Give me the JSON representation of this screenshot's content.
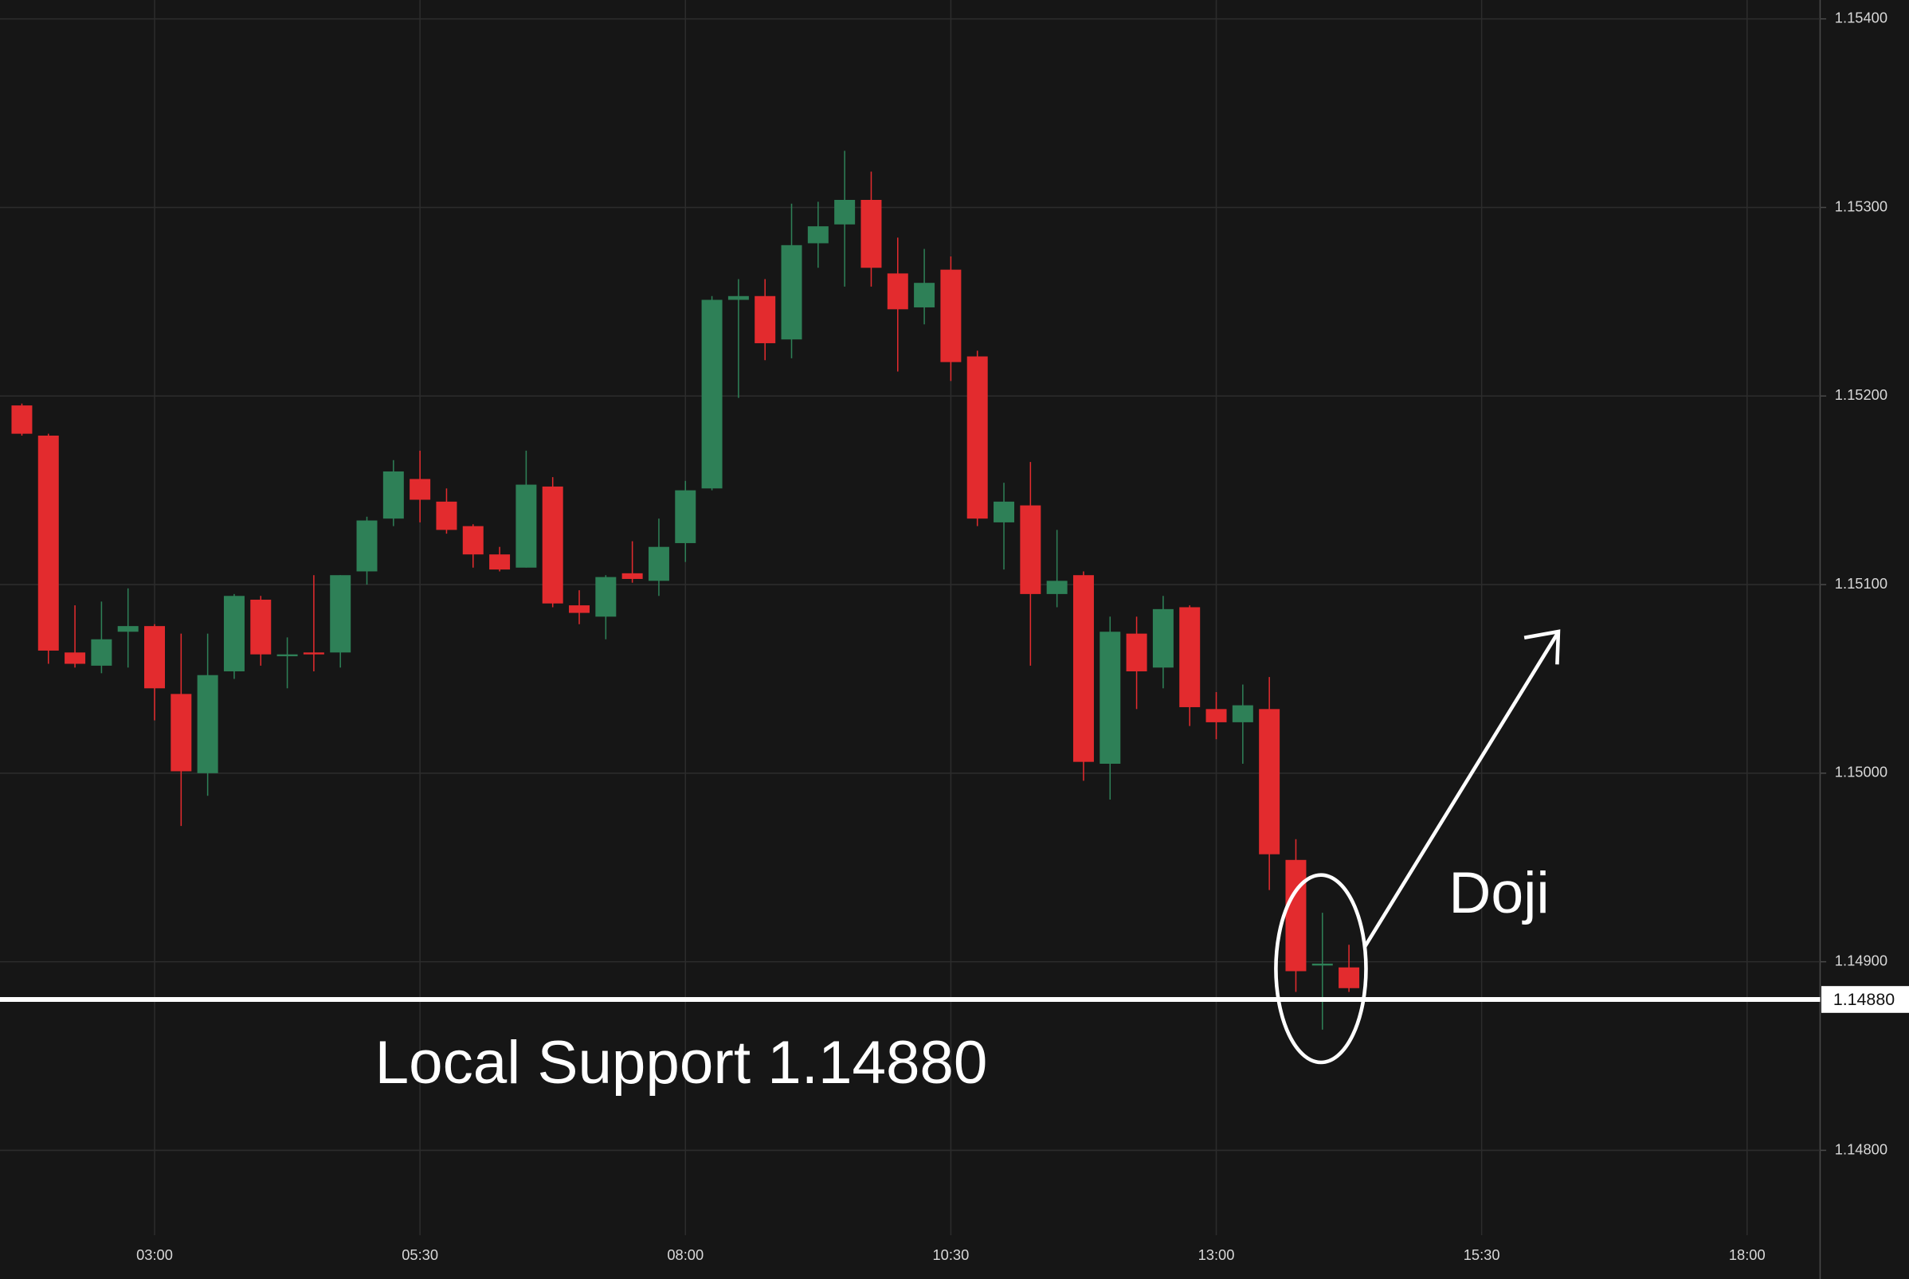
{
  "chart_data": {
    "type": "candlestick",
    "x": [
      1.75,
      2,
      2.25,
      2.5,
      2.75,
      3,
      3.25,
      3.5,
      3.75,
      4,
      4.25,
      4.5,
      4.75,
      5,
      5.25,
      5.5,
      5.75,
      6,
      6.25,
      6.5,
      6.75,
      7,
      7.25,
      7.5,
      7.75,
      8,
      8.25,
      8.5,
      8.75,
      9,
      9.25,
      9.5,
      9.75,
      10,
      10.25,
      10.5,
      10.75,
      11,
      11.25,
      11.5,
      11.75,
      12,
      12.25,
      12.5,
      12.75,
      13,
      13.25,
      13.5,
      13.75,
      14,
      14.25
    ],
    "open": [
      1.15195,
      1.15179,
      1.15064,
      1.15057,
      1.15075,
      1.15078,
      1.15042,
      1.15,
      1.15054,
      1.15092,
      1.15062,
      1.15064,
      1.15064,
      1.15107,
      1.15135,
      1.15156,
      1.15144,
      1.15131,
      1.15116,
      1.15109,
      1.15152,
      1.15089,
      1.15083,
      1.15106,
      1.15102,
      1.15122,
      1.15151,
      1.15251,
      1.15253,
      1.1523,
      1.15281,
      1.15291,
      1.15304,
      1.15265,
      1.15247,
      1.15267,
      1.15221,
      1.15133,
      1.15142,
      1.15095,
      1.15105,
      1.15005,
      1.15074,
      1.15056,
      1.15088,
      1.15034,
      1.15027,
      1.15034,
      1.14954,
      1.14898,
      1.14897
    ],
    "high": [
      1.15196,
      1.1518,
      1.15089,
      1.15091,
      1.15098,
      1.15079,
      1.15074,
      1.15074,
      1.15095,
      1.15094,
      1.15072,
      1.15105,
      1.15105,
      1.15136,
      1.15166,
      1.15171,
      1.15151,
      1.15132,
      1.1512,
      1.15171,
      1.15157,
      1.15097,
      1.15105,
      1.15123,
      1.15135,
      1.15155,
      1.15253,
      1.15262,
      1.15262,
      1.15302,
      1.15303,
      1.1533,
      1.15319,
      1.15284,
      1.15278,
      1.15274,
      1.15224,
      1.15154,
      1.15165,
      1.15129,
      1.15107,
      1.15083,
      1.15083,
      1.15094,
      1.15089,
      1.15043,
      1.15047,
      1.15051,
      1.14965,
      1.14926,
      1.14909
    ],
    "low": [
      1.15179,
      1.15058,
      1.15056,
      1.15053,
      1.15056,
      1.15028,
      1.14972,
      1.14988,
      1.1505,
      1.15057,
      1.15045,
      1.15054,
      1.15056,
      1.151,
      1.15131,
      1.15133,
      1.15127,
      1.15109,
      1.15107,
      1.15109,
      1.15088,
      1.15079,
      1.15071,
      1.15101,
      1.15094,
      1.15112,
      1.1515,
      1.15199,
      1.15219,
      1.1522,
      1.15268,
      1.15258,
      1.15258,
      1.15213,
      1.15238,
      1.15208,
      1.15131,
      1.15108,
      1.15057,
      1.15088,
      1.14996,
      1.14986,
      1.15034,
      1.15045,
      1.15025,
      1.15018,
      1.15005,
      1.14938,
      1.14884,
      1.14864,
      1.14884
    ],
    "close": [
      1.1518,
      1.15065,
      1.15058,
      1.15071,
      1.15078,
      1.15045,
      1.15001,
      1.15052,
      1.15094,
      1.15063,
      1.15063,
      1.15063,
      1.15105,
      1.15134,
      1.1516,
      1.15145,
      1.15129,
      1.15116,
      1.15108,
      1.15153,
      1.1509,
      1.15085,
      1.15104,
      1.15103,
      1.1512,
      1.1515,
      1.15251,
      1.15253,
      1.15228,
      1.1528,
      1.1529,
      1.15304,
      1.15268,
      1.15246,
      1.1526,
      1.15218,
      1.15135,
      1.15144,
      1.15095,
      1.15102,
      1.15006,
      1.15075,
      1.15054,
      1.15087,
      1.15035,
      1.15027,
      1.15036,
      1.14957,
      1.14895,
      1.14899,
      1.14886
    ],
    "xlim": [
      1.544,
      18.688
    ],
    "xticks": [
      {
        "value": 3,
        "label": "03:00"
      },
      {
        "value": 5.5,
        "label": "05:30"
      },
      {
        "value": 8,
        "label": "08:00"
      },
      {
        "value": 10.5,
        "label": "10:30"
      },
      {
        "value": 13,
        "label": "13:00"
      },
      {
        "value": 15.5,
        "label": "15:30"
      },
      {
        "value": 18,
        "label": "18:00"
      }
    ],
    "ylim": [
      1.14755,
      1.1541
    ],
    "yticks": [
      {
        "value": 1.154,
        "label": "1.15400"
      },
      {
        "value": 1.153,
        "label": "1.15300"
      },
      {
        "value": 1.152,
        "label": "1.15200"
      },
      {
        "value": 1.151,
        "label": "1.15100"
      },
      {
        "value": 1.15,
        "label": "1.15000"
      },
      {
        "value": 1.149,
        "label": "1.14900"
      },
      {
        "value": 1.148,
        "label": "1.14800"
      }
    ],
    "grid": true,
    "up_color": "#2e8057",
    "down_color": "#e32b2e",
    "support": {
      "value": 1.1488,
      "label": "1.14880"
    },
    "annotations": [
      "Local Support 1.14880",
      "Doji"
    ]
  }
}
